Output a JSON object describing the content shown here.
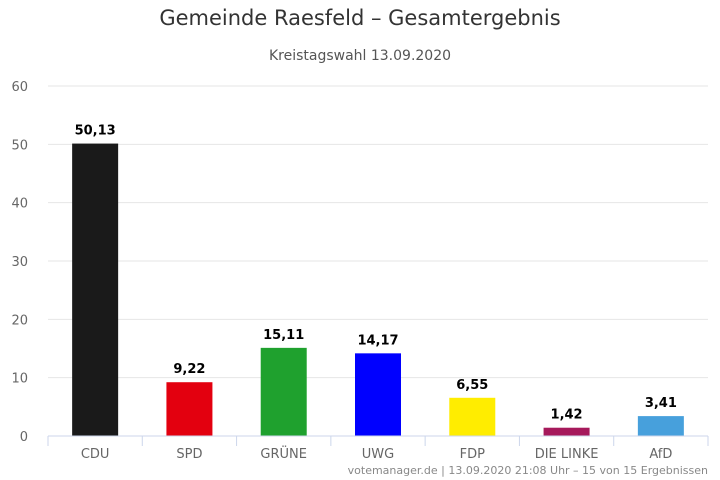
{
  "chart_data": {
    "type": "bar",
    "title": "Gemeinde Raesfeld – Gesamtergebnis",
    "subtitle": "Kreistagswahl 13.09.2020",
    "categories": [
      "CDU",
      "SPD",
      "GRÜNE",
      "UWG",
      "FDP",
      "DIE LINKE",
      "AfD"
    ],
    "values": [
      50.13,
      9.22,
      15.11,
      14.17,
      6.55,
      1.42,
      3.41
    ],
    "value_labels": [
      "50,13",
      "9,22",
      "15,11",
      "14,17",
      "6,55",
      "1,42",
      "3,41"
    ],
    "colors": [
      "#1a1a1a",
      "#e3000f",
      "#1fa12e",
      "#0000ff",
      "#ffed00",
      "#a6195b",
      "#47a0dc"
    ],
    "ylim": [
      0,
      60
    ],
    "yticks": [
      0,
      10,
      20,
      30,
      40,
      50,
      60
    ],
    "xlabel": "",
    "ylabel": "",
    "grid": true,
    "legend": "none"
  },
  "credits": "votemanager.de | 13.09.2020 21:08 Uhr – 15 von 15 Ergebnissen"
}
